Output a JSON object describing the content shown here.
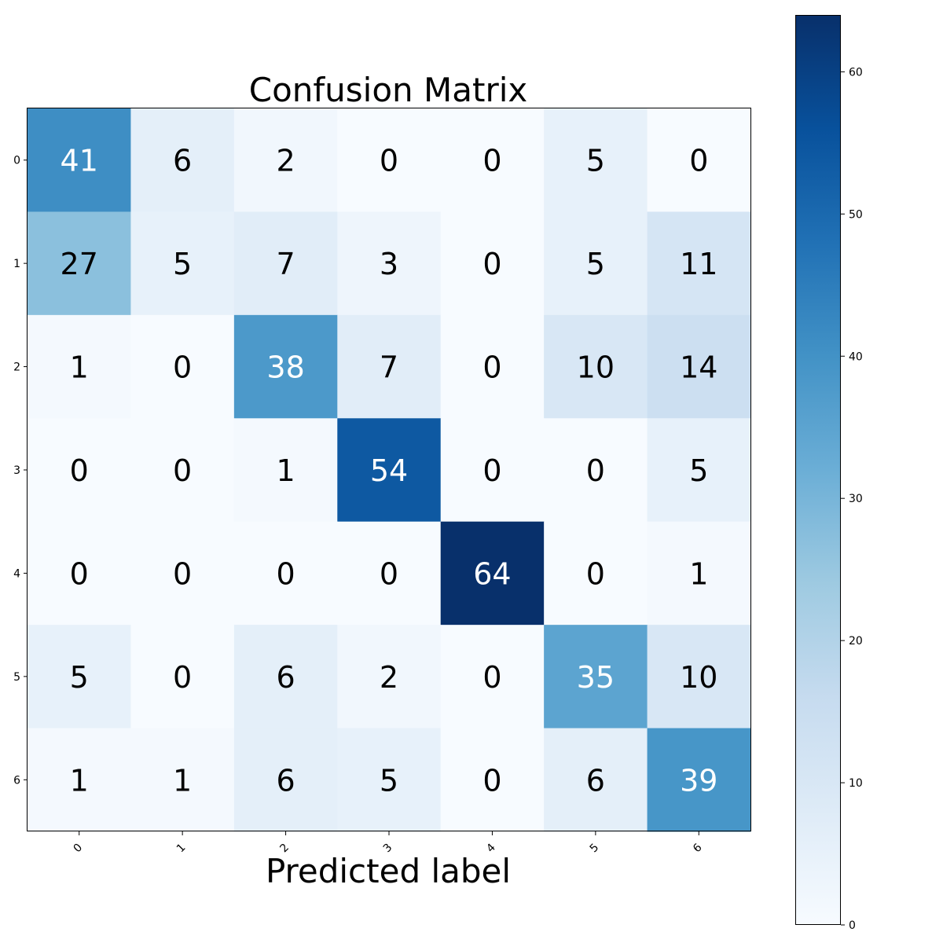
{
  "chart_data": {
    "type": "heatmap",
    "title": "Confusion Matrix",
    "xlabel": "Predicted label",
    "ylabel": "",
    "x_ticks": [
      "0",
      "1",
      "2",
      "3",
      "4",
      "5",
      "6"
    ],
    "y_ticks": [
      "0",
      "1",
      "2",
      "3",
      "4",
      "5",
      "6"
    ],
    "matrix": [
      [
        41,
        6,
        2,
        0,
        0,
        5,
        0
      ],
      [
        27,
        5,
        7,
        3,
        0,
        5,
        11
      ],
      [
        1,
        0,
        38,
        7,
        0,
        10,
        14
      ],
      [
        0,
        0,
        1,
        54,
        0,
        0,
        5
      ],
      [
        0,
        0,
        0,
        0,
        64,
        0,
        1
      ],
      [
        5,
        0,
        6,
        2,
        0,
        35,
        10
      ],
      [
        1,
        1,
        6,
        5,
        0,
        6,
        39
      ]
    ],
    "colormap": "Blues",
    "colorbar": {
      "min": 0,
      "max": 64,
      "ticks": [
        0,
        10,
        20,
        30,
        40,
        50,
        60
      ]
    },
    "text_color_threshold": 32,
    "colors": {
      "low": "#f7fbff",
      "high": "#08306b",
      "light_text": "#ffffff",
      "dark_text": "#000000"
    }
  }
}
